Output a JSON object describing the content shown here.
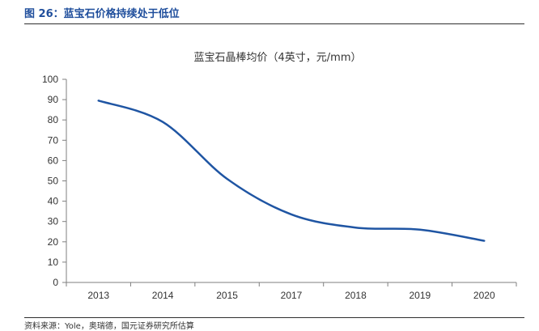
{
  "figure": {
    "title": "图 26：蓝宝石价格持续处于低位",
    "source": "资料来源：Yole，奥瑞德，国元证券研究所估算"
  },
  "colors": {
    "accent": "#1f4e9c",
    "line": "#1f55a3",
    "axis": "#7f7f7f"
  },
  "chart_data": {
    "type": "line",
    "title": "蓝宝石晶棒均价（4英寸，元/mm）",
    "categories": [
      "2013",
      "2014",
      "2015",
      "2017",
      "2018",
      "2019",
      "2020"
    ],
    "series": [
      {
        "values": [
          89.5,
          79,
          51,
          33.5,
          27,
          26,
          20.5
        ]
      }
    ],
    "ylim": [
      0,
      100
    ],
    "yticks": [
      0,
      10,
      20,
      30,
      40,
      50,
      60,
      70,
      80,
      90,
      100
    ],
    "xlabel": "",
    "ylabel": "",
    "grid": false,
    "legend": "none"
  }
}
